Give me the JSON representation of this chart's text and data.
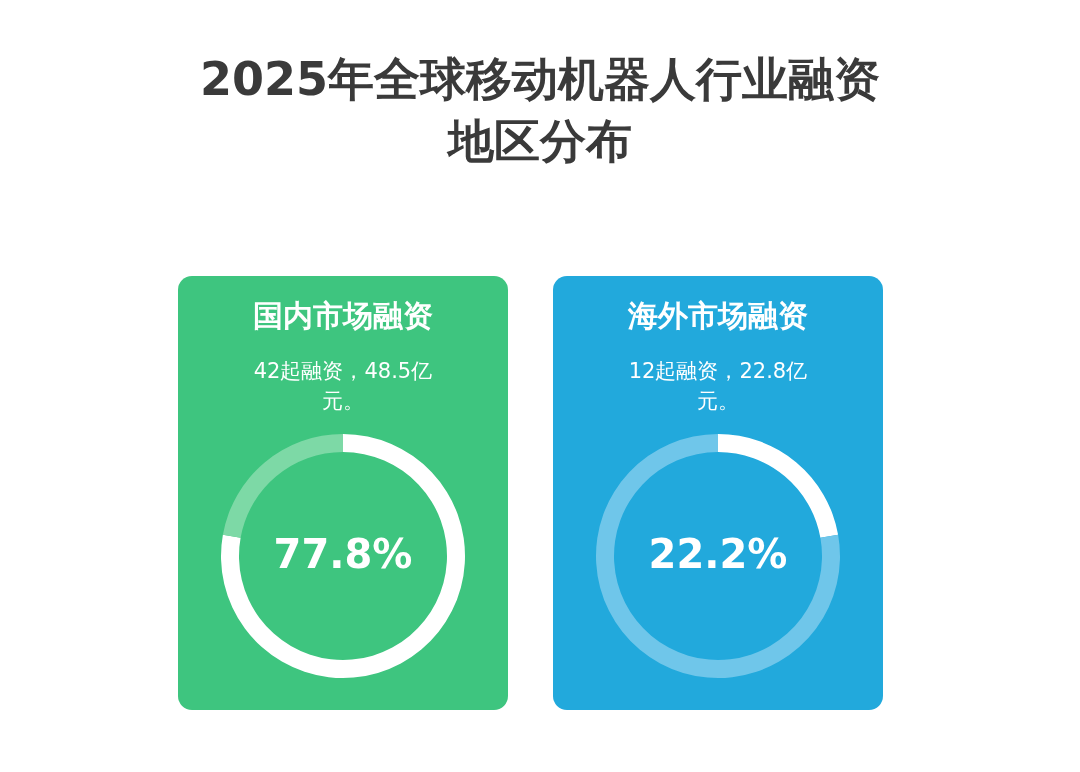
{
  "chart_data": [
    {
      "type": "other",
      "title": "2025年全球移动机器人行业融资地区分布"
    },
    {
      "type": "donut",
      "title": "国内市场融资",
      "subtitle": "42起融资，48.5亿元。",
      "categories": [
        null,
        null
      ],
      "values": [
        77.8,
        22.2
      ],
      "colors": [
        "#ffffff",
        "#7dd9a6"
      ],
      "value_labels": [
        "77.8%",
        null
      ],
      "legend": false
    },
    {
      "type": "donut",
      "title": "海外市场融资",
      "subtitle": "12起融资，22.8亿元。",
      "categories": [
        null,
        null
      ],
      "values": [
        22.2,
        77.8
      ],
      "colors": [
        "#ffffff",
        "#6fc6ea"
      ],
      "value_labels": [
        "22.2%",
        null
      ],
      "legend": false
    }
  ]
}
